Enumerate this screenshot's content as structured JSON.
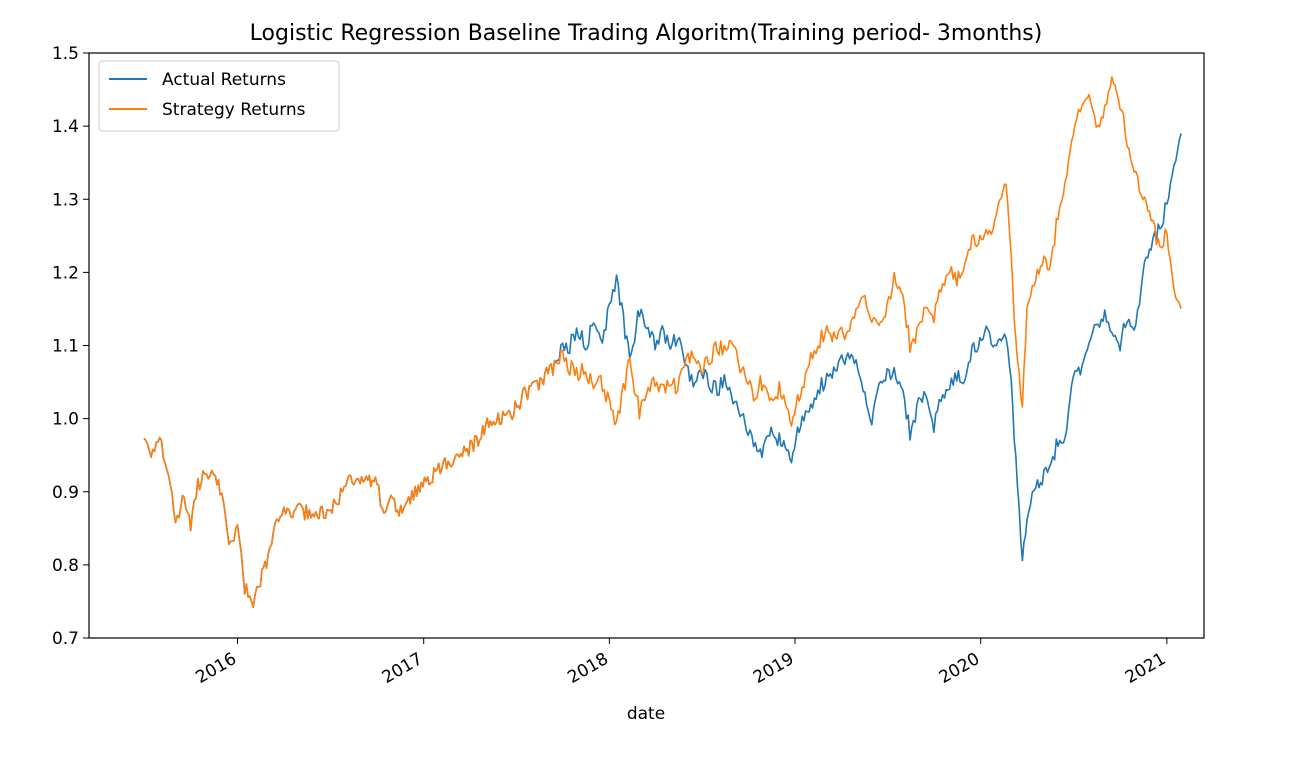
{
  "chart_data": {
    "type": "line",
    "title": "Logistic Regression Baseline Trading Algoritm(Training period- 3months)",
    "xlabel": "date",
    "ylabel": "",
    "xlim": [
      "2015-03-15",
      "2021-03-15"
    ],
    "ylim": [
      0.7,
      1.5
    ],
    "y_ticks": [
      0.7,
      0.8,
      0.9,
      1.0,
      1.1,
      1.2,
      1.3,
      1.4,
      1.5
    ],
    "y_tick_labels": [
      "0.7",
      "0.8",
      "0.9",
      "1.0",
      "1.1",
      "1.2",
      "1.3",
      "1.4",
      "1.5"
    ],
    "x_ticks": [
      "2016-01-01",
      "2017-01-01",
      "2018-01-01",
      "2019-01-01",
      "2020-01-01",
      "2021-01-01"
    ],
    "x_tick_labels": [
      "2016",
      "2017",
      "2018",
      "2019",
      "2020",
      "2021"
    ],
    "grid": false,
    "legend_position": "top-left",
    "series": [
      {
        "name": "Actual Returns",
        "color": "#1f77b4",
        "points": [
          [
            "2015-07-01",
            0.98
          ],
          [
            "2015-07-15",
            0.95
          ],
          [
            "2015-08-01",
            0.97
          ],
          [
            "2015-08-15",
            0.93
          ],
          [
            "2015-09-01",
            0.86
          ],
          [
            "2015-09-15",
            0.89
          ],
          [
            "2015-10-01",
            0.85
          ],
          [
            "2015-10-15",
            0.91
          ],
          [
            "2015-11-01",
            0.93
          ],
          [
            "2015-11-15",
            0.92
          ],
          [
            "2015-12-01",
            0.9
          ],
          [
            "2015-12-15",
            0.83
          ],
          [
            "2016-01-01",
            0.85
          ],
          [
            "2016-01-15",
            0.77
          ],
          [
            "2016-02-01",
            0.75
          ],
          [
            "2016-02-15",
            0.78
          ],
          [
            "2016-03-01",
            0.81
          ],
          [
            "2016-03-15",
            0.85
          ],
          [
            "2016-04-01",
            0.87
          ],
          [
            "2016-04-15",
            0.875
          ],
          [
            "2016-05-15",
            0.872
          ],
          [
            "2016-06-25",
            0.87
          ],
          [
            "2016-07-15",
            0.89
          ],
          [
            "2016-08-01",
            0.91
          ],
          [
            "2016-09-01",
            0.92
          ],
          [
            "2016-10-01",
            0.91
          ],
          [
            "2016-10-15",
            0.87
          ],
          [
            "2016-11-01",
            0.89
          ],
          [
            "2016-11-20",
            0.87
          ],
          [
            "2016-12-15",
            0.9
          ],
          [
            "2017-01-15",
            0.92
          ],
          [
            "2017-02-15",
            0.94
          ],
          [
            "2017-03-15",
            0.95
          ],
          [
            "2017-04-15",
            0.97
          ],
          [
            "2017-05-15",
            1.0
          ],
          [
            "2017-06-15",
            1.0
          ],
          [
            "2017-07-15",
            1.03
          ],
          [
            "2017-08-15",
            1.05
          ],
          [
            "2017-09-15",
            1.07
          ],
          [
            "2017-10-01",
            1.1
          ],
          [
            "2017-10-15",
            1.1
          ],
          [
            "2017-11-01",
            1.12
          ],
          [
            "2017-11-15",
            1.1
          ],
          [
            "2017-12-01",
            1.13
          ],
          [
            "2017-12-15",
            1.1
          ],
          [
            "2018-01-01",
            1.15
          ],
          [
            "2018-01-15",
            1.19
          ],
          [
            "2018-02-01",
            1.12
          ],
          [
            "2018-02-10",
            1.08
          ],
          [
            "2018-03-01",
            1.15
          ],
          [
            "2018-03-15",
            1.12
          ],
          [
            "2018-04-01",
            1.1
          ],
          [
            "2018-04-15",
            1.12
          ],
          [
            "2018-05-01",
            1.1
          ],
          [
            "2018-05-15",
            1.11
          ],
          [
            "2018-06-01",
            1.07
          ],
          [
            "2018-06-15",
            1.05
          ],
          [
            "2018-07-01",
            1.07
          ],
          [
            "2018-07-15",
            1.05
          ],
          [
            "2018-08-01",
            1.04
          ],
          [
            "2018-08-15",
            1.05
          ],
          [
            "2018-09-01",
            1.03
          ],
          [
            "2018-09-15",
            1.01
          ],
          [
            "2018-10-01",
            0.98
          ],
          [
            "2018-10-15",
            0.97
          ],
          [
            "2018-10-25",
            0.95
          ],
          [
            "2018-11-15",
            0.98
          ],
          [
            "2018-12-01",
            0.97
          ],
          [
            "2018-12-25",
            0.95
          ],
          [
            "2019-01-15",
            1.0
          ],
          [
            "2019-02-01",
            1.02
          ],
          [
            "2019-02-15",
            1.04
          ],
          [
            "2019-03-01",
            1.05
          ],
          [
            "2019-03-15",
            1.06
          ],
          [
            "2019-04-15",
            1.09
          ],
          [
            "2019-05-01",
            1.07
          ],
          [
            "2019-05-15",
            1.04
          ],
          [
            "2019-06-01",
            1.0
          ],
          [
            "2019-06-15",
            1.04
          ],
          [
            "2019-07-01",
            1.06
          ],
          [
            "2019-07-15",
            1.06
          ],
          [
            "2019-08-01",
            1.04
          ],
          [
            "2019-08-15",
            0.98
          ],
          [
            "2019-09-01",
            1.02
          ],
          [
            "2019-09-15",
            1.04
          ],
          [
            "2019-10-01",
            0.99
          ],
          [
            "2019-10-15",
            1.03
          ],
          [
            "2019-11-01",
            1.04
          ],
          [
            "2019-11-15",
            1.06
          ],
          [
            "2019-12-01",
            1.05
          ],
          [
            "2019-12-15",
            1.09
          ],
          [
            "2020-01-15",
            1.12
          ],
          [
            "2020-02-01",
            1.1
          ],
          [
            "2020-02-20",
            1.12
          ],
          [
            "2020-03-01",
            1.05
          ],
          [
            "2020-03-10",
            0.94
          ],
          [
            "2020-03-23",
            0.8
          ],
          [
            "2020-04-01",
            0.86
          ],
          [
            "2020-04-15",
            0.9
          ],
          [
            "2020-05-01",
            0.92
          ],
          [
            "2020-05-15",
            0.93
          ],
          [
            "2020-06-01",
            0.97
          ],
          [
            "2020-06-15",
            0.98
          ],
          [
            "2020-07-01",
            1.05
          ],
          [
            "2020-07-15",
            1.07
          ],
          [
            "2020-08-01",
            1.11
          ],
          [
            "2020-08-15",
            1.13
          ],
          [
            "2020-09-01",
            1.14
          ],
          [
            "2020-09-15",
            1.12
          ],
          [
            "2020-10-01",
            1.1
          ],
          [
            "2020-10-15",
            1.14
          ],
          [
            "2020-11-01",
            1.13
          ],
          [
            "2020-11-15",
            1.2
          ],
          [
            "2020-12-01",
            1.23
          ],
          [
            "2020-12-15",
            1.26
          ],
          [
            "2021-01-01",
            1.29
          ],
          [
            "2021-01-15",
            1.35
          ],
          [
            "2021-01-29",
            1.39
          ]
        ]
      },
      {
        "name": "Strategy Returns",
        "color": "#ff7f0e",
        "points": [
          [
            "2015-07-01",
            0.98
          ],
          [
            "2015-07-15",
            0.95
          ],
          [
            "2015-08-01",
            0.97
          ],
          [
            "2015-08-15",
            0.93
          ],
          [
            "2015-09-01",
            0.86
          ],
          [
            "2015-09-15",
            0.89
          ],
          [
            "2015-10-01",
            0.85
          ],
          [
            "2015-10-15",
            0.91
          ],
          [
            "2015-11-01",
            0.93
          ],
          [
            "2015-11-15",
            0.92
          ],
          [
            "2015-12-01",
            0.9
          ],
          [
            "2015-12-15",
            0.83
          ],
          [
            "2016-01-01",
            0.85
          ],
          [
            "2016-01-15",
            0.77
          ],
          [
            "2016-02-01",
            0.75
          ],
          [
            "2016-02-15",
            0.78
          ],
          [
            "2016-03-01",
            0.81
          ],
          [
            "2016-03-15",
            0.85
          ],
          [
            "2016-04-01",
            0.87
          ],
          [
            "2016-04-15",
            0.875
          ],
          [
            "2016-05-15",
            0.872
          ],
          [
            "2016-06-25",
            0.87
          ],
          [
            "2016-07-15",
            0.89
          ],
          [
            "2016-08-01",
            0.91
          ],
          [
            "2016-09-01",
            0.92
          ],
          [
            "2016-10-01",
            0.91
          ],
          [
            "2016-10-15",
            0.87
          ],
          [
            "2016-11-01",
            0.89
          ],
          [
            "2016-11-20",
            0.87
          ],
          [
            "2016-12-15",
            0.9
          ],
          [
            "2017-01-15",
            0.92
          ],
          [
            "2017-02-15",
            0.94
          ],
          [
            "2017-03-15",
            0.95
          ],
          [
            "2017-04-15",
            0.97
          ],
          [
            "2017-05-15",
            1.0
          ],
          [
            "2017-06-15",
            1.0
          ],
          [
            "2017-07-15",
            1.03
          ],
          [
            "2017-08-15",
            1.05
          ],
          [
            "2017-09-15",
            1.07
          ],
          [
            "2017-10-01",
            1.09
          ],
          [
            "2017-10-15",
            1.07
          ],
          [
            "2017-11-01",
            1.06
          ],
          [
            "2017-11-15",
            1.07
          ],
          [
            "2017-12-01",
            1.04
          ],
          [
            "2017-12-15",
            1.05
          ],
          [
            "2018-01-01",
            1.02
          ],
          [
            "2018-01-15",
            0.99
          ],
          [
            "2018-02-01",
            1.05
          ],
          [
            "2018-02-10",
            1.08
          ],
          [
            "2018-03-01",
            1.01
          ],
          [
            "2018-03-15",
            1.03
          ],
          [
            "2018-04-01",
            1.05
          ],
          [
            "2018-04-15",
            1.04
          ],
          [
            "2018-05-01",
            1.05
          ],
          [
            "2018-05-15",
            1.04
          ],
          [
            "2018-06-01",
            1.08
          ],
          [
            "2018-06-15",
            1.09
          ],
          [
            "2018-07-01",
            1.07
          ],
          [
            "2018-07-15",
            1.08
          ],
          [
            "2018-08-01",
            1.1
          ],
          [
            "2018-08-15",
            1.09
          ],
          [
            "2018-09-01",
            1.11
          ],
          [
            "2018-09-15",
            1.07
          ],
          [
            "2018-10-01",
            1.05
          ],
          [
            "2018-10-15",
            1.03
          ],
          [
            "2018-10-25",
            1.05
          ],
          [
            "2018-11-15",
            1.02
          ],
          [
            "2018-12-01",
            1.04
          ],
          [
            "2018-12-25",
            1.0
          ],
          [
            "2019-01-15",
            1.04
          ],
          [
            "2019-02-01",
            1.09
          ],
          [
            "2019-02-15",
            1.1
          ],
          [
            "2019-03-01",
            1.12
          ],
          [
            "2019-03-15",
            1.11
          ],
          [
            "2019-04-15",
            1.12
          ],
          [
            "2019-05-01",
            1.14
          ],
          [
            "2019-05-15",
            1.17
          ],
          [
            "2019-06-01",
            1.14
          ],
          [
            "2019-06-15",
            1.12
          ],
          [
            "2019-07-01",
            1.15
          ],
          [
            "2019-07-15",
            1.19
          ],
          [
            "2019-08-01",
            1.17
          ],
          [
            "2019-08-15",
            1.1
          ],
          [
            "2019-09-01",
            1.12
          ],
          [
            "2019-09-15",
            1.16
          ],
          [
            "2019-10-01",
            1.14
          ],
          [
            "2019-10-15",
            1.18
          ],
          [
            "2019-11-01",
            1.2
          ],
          [
            "2019-11-15",
            1.19
          ],
          [
            "2019-12-01",
            1.21
          ],
          [
            "2019-12-15",
            1.24
          ],
          [
            "2020-01-15",
            1.25
          ],
          [
            "2020-02-01",
            1.28
          ],
          [
            "2020-02-20",
            1.33
          ],
          [
            "2020-03-01",
            1.22
          ],
          [
            "2020-03-10",
            1.1
          ],
          [
            "2020-03-23",
            1.01
          ],
          [
            "2020-04-01",
            1.15
          ],
          [
            "2020-04-15",
            1.18
          ],
          [
            "2020-05-01",
            1.22
          ],
          [
            "2020-05-15",
            1.2
          ],
          [
            "2020-06-01",
            1.28
          ],
          [
            "2020-06-15",
            1.33
          ],
          [
            "2020-07-01",
            1.38
          ],
          [
            "2020-07-15",
            1.43
          ],
          [
            "2020-08-01",
            1.45
          ],
          [
            "2020-08-15",
            1.4
          ],
          [
            "2020-09-01",
            1.42
          ],
          [
            "2020-09-15",
            1.47
          ],
          [
            "2020-10-01",
            1.43
          ],
          [
            "2020-10-15",
            1.38
          ],
          [
            "2020-11-01",
            1.34
          ],
          [
            "2020-11-15",
            1.3
          ],
          [
            "2020-12-01",
            1.27
          ],
          [
            "2020-12-15",
            1.24
          ],
          [
            "2021-01-01",
            1.25
          ],
          [
            "2021-01-15",
            1.18
          ],
          [
            "2021-01-29",
            1.15
          ]
        ]
      }
    ]
  }
}
